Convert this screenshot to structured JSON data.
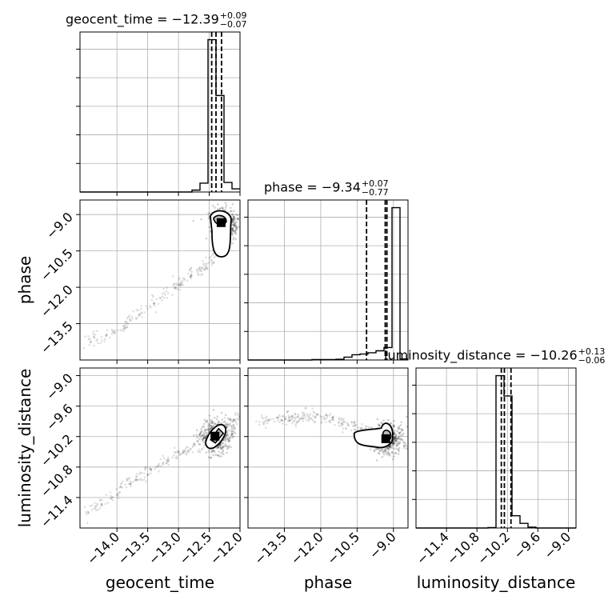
{
  "chart_data": {
    "type": "corner",
    "parameters": [
      "geocent_time",
      "phase",
      "luminosity_distance"
    ],
    "ranges": {
      "geocent_time": [
        -14.6,
        -12.0
      ],
      "phase": [
        -15.0,
        -8.4
      ],
      "luminosity_distance": [
        -12.0,
        -8.85
      ]
    },
    "ticks": {
      "geocent_time": [
        "-14.0",
        "-13.5",
        "-13.0",
        "-12.5",
        "-12.0"
      ],
      "phase": [
        "-13.5",
        "-12.0",
        "-10.5",
        "-9.0"
      ],
      "luminosity_distance": [
        "-11.4",
        "-10.8",
        "-10.2",
        "-9.6",
        "-9.0"
      ]
    },
    "titles": [
      {
        "param": "geocent_time",
        "label": "geocent_time = −12.39",
        "plus": "+0.09",
        "minus": "−0.07"
      },
      {
        "param": "phase",
        "label": "phase = −9.34",
        "plus": "+0.07",
        "minus": "−0.77"
      },
      {
        "param": "luminosity_distance",
        "label": "luminosity_distance = −10.26",
        "plus": "+0.13",
        "minus": "−0.06"
      }
    ],
    "axis_labels": {
      "x": [
        "geocent_time",
        "phase",
        "luminosity_distance"
      ],
      "y": [
        "phase",
        "luminosity_distance"
      ]
    },
    "histograms": {
      "geocent_time": {
        "edges": [
          -14.6,
          -14.47,
          -14.34,
          -14.21,
          -14.08,
          -13.95,
          -13.82,
          -13.69,
          -13.56,
          -13.43,
          -13.3,
          -13.17,
          -13.04,
          -12.91,
          -12.78,
          -12.65,
          -12.52,
          -12.39,
          -12.26,
          -12.13,
          -12.0
        ],
        "counts": [
          0,
          0,
          0,
          0,
          0,
          0,
          0,
          0,
          0,
          0,
          0,
          0,
          0,
          0,
          3,
          14,
          240,
          152,
          15,
          5
        ],
        "quantiles": [
          -12.46,
          -12.39,
          -12.3
        ]
      },
      "phase": {
        "edges": [
          -15.0,
          -14.67,
          -14.34,
          -14.01,
          -13.68,
          -13.35,
          -13.02,
          -12.69,
          -12.36,
          -12.03,
          -11.7,
          -11.37,
          -11.04,
          -10.71,
          -10.38,
          -10.05,
          -9.72,
          -9.39,
          -9.06,
          -8.73,
          -8.4
        ],
        "counts": [
          0,
          0,
          0,
          0,
          0,
          0,
          0,
          0,
          3,
          3,
          3,
          6,
          22,
          40,
          45,
          55,
          70,
          95,
          1160,
          8
        ],
        "quantiles": [
          -10.11,
          -9.34,
          -9.27
        ]
      },
      "luminosity_distance": {
        "edges": [
          -12.0,
          -11.8425,
          -11.685,
          -11.5275,
          -11.37,
          -11.2125,
          -11.055,
          -10.8975,
          -10.74,
          -10.5825,
          -10.425,
          -10.2675,
          -10.11,
          -9.9525,
          -9.795,
          -9.6375,
          -9.48,
          -9.3225,
          -9.165,
          -9.0075,
          -8.85
        ],
        "counts": [
          0,
          0,
          0,
          0,
          0,
          0,
          0,
          0,
          0,
          5,
          1800,
          1560,
          145,
          55,
          10,
          0,
          0,
          0,
          0,
          0
        ],
        "quantiles": [
          -10.32,
          -10.26,
          -10.13
        ]
      }
    },
    "scatter_trend": {
      "geocent_vs_phase": [
        [
          -14.5,
          -14.2
        ],
        [
          -14.0,
          -13.8
        ],
        [
          -13.5,
          -12.8
        ],
        [
          -13.0,
          -11.9
        ],
        [
          -12.6,
          -11.2
        ],
        [
          -12.3,
          -10.4
        ],
        [
          -12.1,
          -9.2
        ]
      ],
      "geocent_vs_lumdist": [
        [
          -14.5,
          -11.7
        ],
        [
          -14.0,
          -11.3
        ],
        [
          -13.5,
          -10.9
        ],
        [
          -13.0,
          -10.55
        ],
        [
          -12.6,
          -10.28
        ],
        [
          -12.3,
          -10.05
        ],
        [
          -12.0,
          -9.8
        ]
      ],
      "phase_vs_lumdist": [
        [
          -14.6,
          -9.9
        ],
        [
          -13.5,
          -9.85
        ],
        [
          -12.5,
          -9.8
        ],
        [
          -11.5,
          -9.85
        ],
        [
          -10.5,
          -10.0
        ],
        [
          -9.5,
          -10.2
        ],
        [
          -9.1,
          -10.2
        ]
      ]
    },
    "grid": true,
    "legend": "none"
  }
}
